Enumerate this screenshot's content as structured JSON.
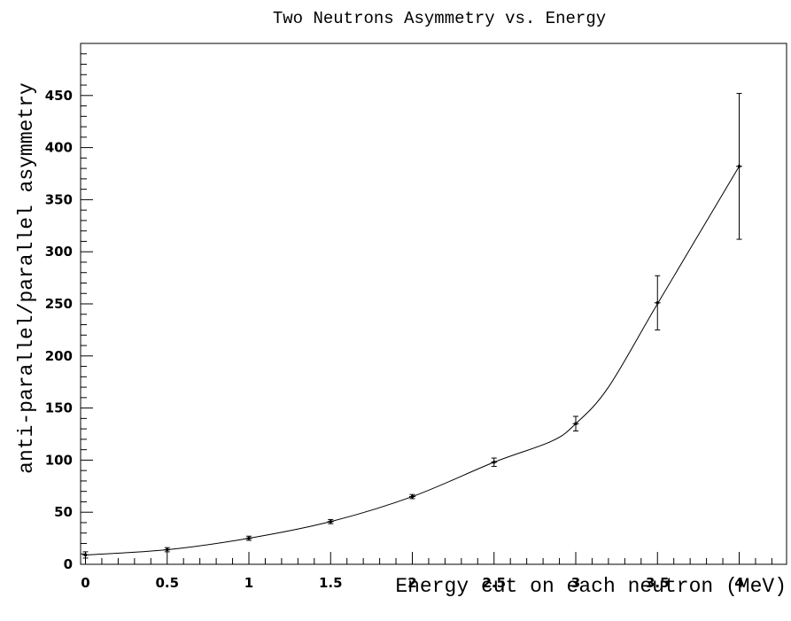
{
  "chart_data": {
    "type": "scatter",
    "title": "Two Neutrons Asymmetry vs. Energy",
    "xlabel": "Energy cut on each neutron (MeV)",
    "ylabel": "anti-parallel/parallel asymmetry",
    "xlim": [
      -0.05,
      4.3
    ],
    "ylim": [
      0,
      500
    ],
    "x_ticks": [
      0,
      0.5,
      1,
      1.5,
      2,
      2.5,
      3,
      3.5,
      4
    ],
    "x_tick_labels": [
      "0",
      "0.5",
      "1",
      "1.5",
      "2",
      "2.5",
      "3",
      "3.5",
      "4"
    ],
    "y_ticks": [
      0,
      50,
      100,
      150,
      200,
      250,
      300,
      350,
      400,
      450
    ],
    "y_tick_labels": [
      "0",
      "50",
      "100",
      "150",
      "200",
      "250",
      "300",
      "350",
      "400",
      "450"
    ],
    "grid": false,
    "legend": "none",
    "series": [
      {
        "x": [
          0,
          0.5,
          1,
          1.5,
          2,
          2.5,
          3,
          3.5,
          4
        ],
        "y": [
          9,
          14,
          25,
          41,
          65,
          98,
          135,
          251,
          382
        ],
        "y_err": [
          3,
          2,
          2,
          2,
          2,
          4,
          7,
          26,
          70
        ],
        "marker": "errorbar",
        "color": "#000000"
      }
    ],
    "fit_curve": {
      "description_free": true,
      "x": [
        0,
        0.5,
        1,
        1.5,
        2,
        2.5,
        2.85,
        3,
        3.2,
        3.5,
        4
      ],
      "y": [
        9,
        14,
        25,
        41,
        65,
        98,
        118,
        135,
        170,
        250,
        382
      ],
      "color": "#000000"
    }
  }
}
